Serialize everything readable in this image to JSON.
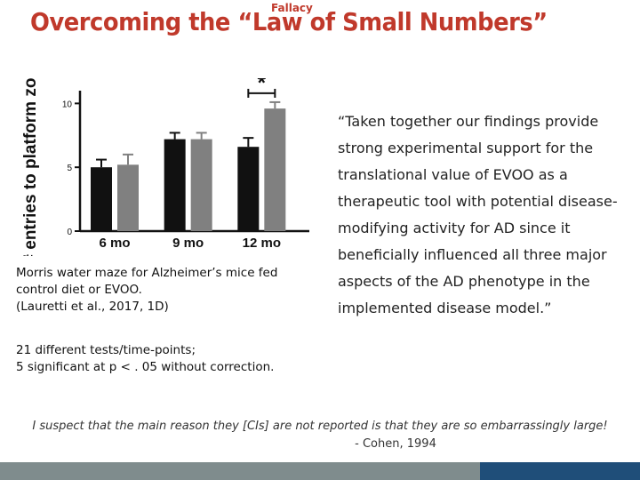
{
  "slide": {
    "title": "Overcoming the “Law of Small Numbers”",
    "title_superscript": "Fallacy",
    "caption_lines": [
      "Morris water maze for Alzheimer’s mice fed control diet or EVOO.",
      "(Lauretti et al., 2017, 1D)"
    ],
    "note_lines": [
      "21 different tests/time-points;",
      "5 significant at p < . 05 without correction."
    ],
    "quote": "“Taken together our findings provide strong experimental support for the translational value of EVOO as a therapeutic tool with potential disease-modifying activity for AD since it beneficially influenced all three major aspects of the AD phenotype in the implemented disease model.”",
    "cohen_quote": "I suspect that the main reason they [CIs] are not reported is that they are so embarrassingly large!",
    "cohen_author": "- Cohen, 1994",
    "colors": {
      "title": "#c0392b",
      "footer_left": "#7f8c8d",
      "footer_right": "#1f4e79"
    }
  },
  "chart_data": {
    "type": "bar",
    "categories": [
      "6 mo",
      "9 mo",
      "12 mo"
    ],
    "series": [
      {
        "values": [
          5.0,
          7.2,
          6.6
        ],
        "errors": [
          0.6,
          0.5,
          0.7
        ],
        "color": "#111111"
      },
      {
        "values": [
          5.2,
          7.2,
          9.6
        ],
        "errors": [
          0.8,
          0.5,
          0.5
        ],
        "color": "#808080"
      }
    ],
    "ylabel": "# entries to platform zone",
    "ylim": [
      0,
      11
    ],
    "yticks": [
      0,
      5,
      10
    ],
    "significance": {
      "category_index": 2,
      "label": "*"
    }
  }
}
